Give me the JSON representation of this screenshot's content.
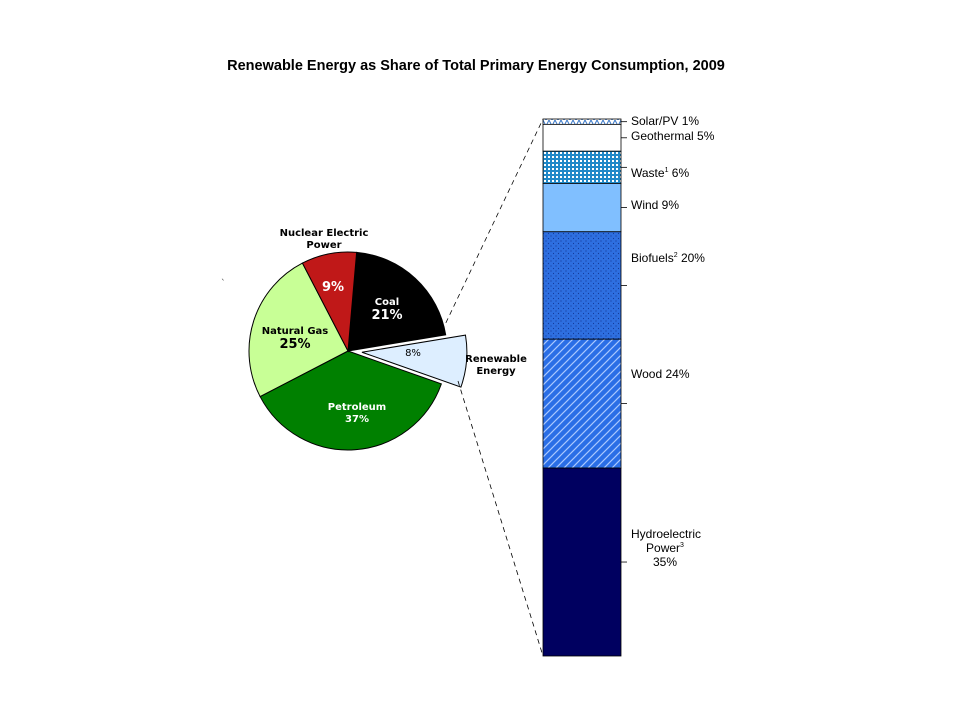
{
  "chart_data": [
    {
      "type": "pie",
      "title": "Renewable Energy as Share of Total Primary Energy Consumption, 2009",
      "slices": [
        {
          "name": "Coal",
          "value": 21,
          "value_label": "21%",
          "color": "#000000",
          "text_color": "#ffffff"
        },
        {
          "name": "Renewable Energy",
          "value": 8,
          "value_label": "8%",
          "color": "#ddeeff",
          "text_color": "#000000",
          "exploded": true
        },
        {
          "name": "Petroleum",
          "value": 37,
          "value_label": "37%",
          "color": "#008000",
          "text_color": "#ffffff"
        },
        {
          "name": "Natural Gas",
          "value": 25,
          "value_label": "25%",
          "color": "#c8ff96",
          "text_color": "#000000"
        },
        {
          "name": "Nuclear Electric Power",
          "value": 9,
          "value_label": "9%",
          "color": "#c01818",
          "text_color": "#ffffff"
        }
      ],
      "labels": {
        "coal_name": "Coal",
        "coal_value": "21%",
        "renewable_value": "8%",
        "renewable_line1": "Renewable",
        "renewable_line2": "Energy",
        "petroleum_name": "Petroleum",
        "petroleum_value": "37%",
        "natural_gas_name": "Natural Gas",
        "natural_gas_value": "25%",
        "nuclear_line1": "Nuclear Electric",
        "nuclear_line2": "Power",
        "nuclear_value": "9%"
      }
    },
    {
      "type": "bar",
      "subtype": "stacked-100",
      "segments": [
        {
          "name": "Solar/PV",
          "value": 1,
          "superscript": "",
          "fill": "solar",
          "color": "#3a78c8"
        },
        {
          "name": "Geothermal",
          "value": 5,
          "superscript": "",
          "fill": "solid",
          "color": "#ffffff"
        },
        {
          "name": "Waste",
          "value": 6,
          "superscript": "1",
          "fill": "waste",
          "color": "#1f88c8"
        },
        {
          "name": "Wind",
          "value": 9,
          "superscript": "",
          "fill": "solid",
          "color": "#80bfff"
        },
        {
          "name": "Biofuels",
          "value": 20,
          "superscript": "2",
          "fill": "biofuels",
          "color": "#2e6fe0"
        },
        {
          "name": "Wood",
          "value": 24,
          "superscript": "",
          "fill": "wood",
          "color": "#2a6ee6"
        },
        {
          "name": "Hydroelectric Power",
          "value": 35,
          "superscript": "3",
          "fill": "solid",
          "color": "#000060"
        }
      ],
      "segment_labels": {
        "solar": "Solar/PV 1%",
        "geothermal": "Geothermal 5%",
        "waste_name": "Waste",
        "waste_sup": "1",
        "waste_value": " 6%",
        "wind": "Wind 9%",
        "biofuels_name": "Biofuels",
        "biofuels_sup": "2",
        "biofuels_value": " 20%",
        "wood": "Wood 24%",
        "hydro_line1": "Hydroelectric",
        "hydro_line2_name": "Power",
        "hydro_sup": "3",
        "hydro_value": "35%"
      }
    }
  ],
  "decor": {
    "stray_mark": "`"
  }
}
